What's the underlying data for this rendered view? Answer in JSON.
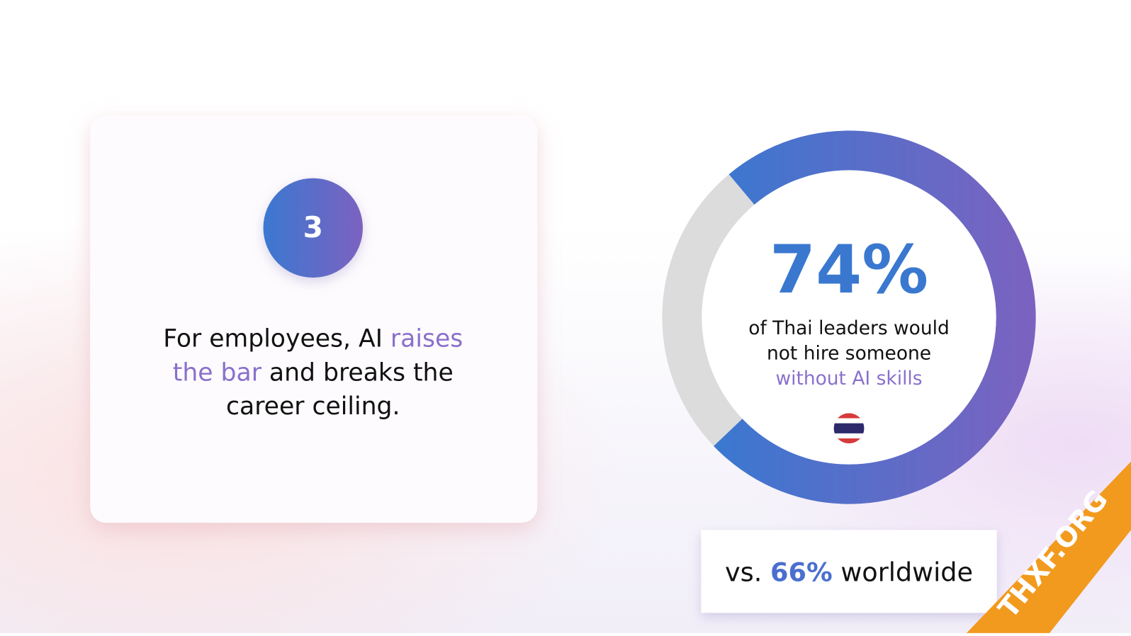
{
  "card": {
    "number": "3",
    "headline": [
      [
        {
          "text": "For employees, AI",
          "accent": false
        },
        {
          "text": "raises",
          "accent": true
        }
      ],
      [
        {
          "text": "the bar",
          "accent": true
        },
        {
          "text": "and breaks the",
          "accent": false
        }
      ],
      [
        {
          "text": "career ceiling.",
          "accent": false
        }
      ]
    ]
  },
  "chart_data": {
    "type": "donut",
    "values": [
      74
    ],
    "value_labels": [
      "74%"
    ],
    "colors": [
      "#3a78d0",
      "#7c62c0"
    ],
    "rest_color": "#dcdcdc",
    "caption": [
      "of Thai leaders would",
      "not hire someone",
      "without AI skills"
    ]
  },
  "comparison": [
    "vs.",
    "66%",
    "worldwide"
  ],
  "watermark": "THXF.ORG"
}
